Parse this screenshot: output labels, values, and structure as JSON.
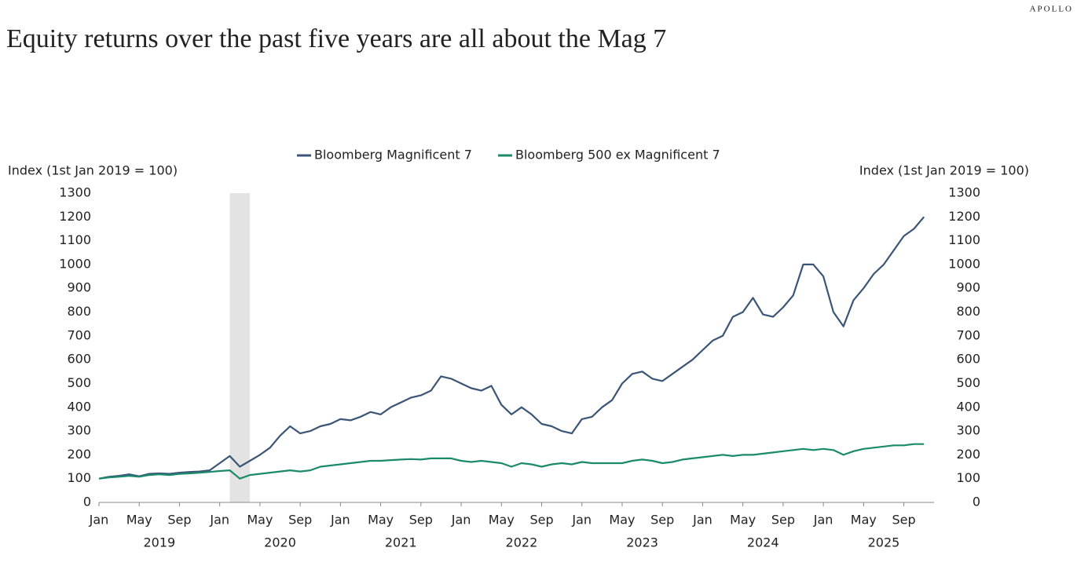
{
  "brand": "APOLLO",
  "chart_data": {
    "type": "line",
    "title": "Equity returns over the past five years are all about the Mag 7",
    "ylabel": "Index (1st Jan 2019 = 100)",
    "y2label": "Index (1st Jan 2019 = 100)",
    "x": [
      "2019-01",
      "2019-02",
      "2019-03",
      "2019-04",
      "2019-05",
      "2019-06",
      "2019-07",
      "2019-08",
      "2019-09",
      "2019-10",
      "2019-11",
      "2019-12",
      "2020-01",
      "2020-02",
      "2020-03",
      "2020-04",
      "2020-05",
      "2020-06",
      "2020-07",
      "2020-08",
      "2020-09",
      "2020-10",
      "2020-11",
      "2020-12",
      "2021-01",
      "2021-02",
      "2021-03",
      "2021-04",
      "2021-05",
      "2021-06",
      "2021-07",
      "2021-08",
      "2021-09",
      "2021-10",
      "2021-11",
      "2021-12",
      "2022-01",
      "2022-02",
      "2022-03",
      "2022-04",
      "2022-05",
      "2022-06",
      "2022-07",
      "2022-08",
      "2022-09",
      "2022-10",
      "2022-11",
      "2022-12",
      "2023-01",
      "2023-02",
      "2023-03",
      "2023-04",
      "2023-05",
      "2023-06",
      "2023-07",
      "2023-08",
      "2023-09",
      "2023-10",
      "2023-11",
      "2023-12",
      "2024-01",
      "2024-02",
      "2024-03",
      "2024-04",
      "2024-05",
      "2024-06",
      "2024-07",
      "2024-08",
      "2024-09",
      "2024-10",
      "2024-11",
      "2024-12",
      "2025-01",
      "2025-02",
      "2025-03",
      "2025-04",
      "2025-05",
      "2025-06",
      "2025-07",
      "2025-08",
      "2025-09",
      "2025-10",
      "2025-11"
    ],
    "series": [
      {
        "name": "Bloomberg Magnificent 7",
        "color": "#3b5577",
        "values": [
          100,
          108,
          112,
          118,
          110,
          120,
          122,
          120,
          125,
          128,
          130,
          135,
          165,
          195,
          150,
          175,
          200,
          230,
          280,
          320,
          290,
          300,
          320,
          330,
          350,
          345,
          360,
          380,
          370,
          400,
          420,
          440,
          450,
          470,
          530,
          520,
          500,
          480,
          470,
          490,
          410,
          370,
          400,
          370,
          330,
          320,
          300,
          290,
          350,
          360,
          400,
          430,
          500,
          540,
          550,
          520,
          510,
          540,
          570,
          600,
          640,
          680,
          700,
          780,
          800,
          860,
          790,
          780,
          820,
          870,
          1000,
          1000,
          950,
          800,
          740,
          850,
          900,
          960,
          1000,
          1060,
          1120,
          1150,
          1200
        ]
      },
      {
        "name": "Bloomberg 500 ex Magnificent 7",
        "color": "#1a8a6a",
        "values": [
          100,
          105,
          108,
          112,
          108,
          115,
          118,
          115,
          120,
          122,
          125,
          128,
          132,
          135,
          100,
          115,
          120,
          125,
          130,
          135,
          130,
          135,
          150,
          155,
          160,
          165,
          170,
          175,
          175,
          178,
          180,
          182,
          180,
          185,
          185,
          185,
          175,
          170,
          175,
          170,
          165,
          150,
          165,
          160,
          150,
          160,
          165,
          160,
          170,
          165,
          165,
          165,
          165,
          175,
          180,
          175,
          165,
          170,
          180,
          185,
          190,
          195,
          200,
          195,
          200,
          200,
          205,
          210,
          215,
          220,
          225,
          220,
          225,
          220,
          200,
          215,
          225,
          230,
          235,
          240,
          240,
          245,
          245
        ]
      }
    ],
    "shade": [
      "2020-02",
      "2020-04"
    ],
    "xlim": [
      "2019-01",
      "2025-12"
    ],
    "xticks": [
      {
        "value": "2019-01",
        "label": "Jan"
      },
      {
        "value": "2019-05",
        "label": "May"
      },
      {
        "value": "2019-09",
        "label": "Sep"
      },
      {
        "value": "2020-01",
        "label": "Jan"
      },
      {
        "value": "2020-05",
        "label": "May"
      },
      {
        "value": "2020-09",
        "label": "Sep"
      },
      {
        "value": "2021-01",
        "label": "Jan"
      },
      {
        "value": "2021-05",
        "label": "May"
      },
      {
        "value": "2021-09",
        "label": "Sep"
      },
      {
        "value": "2022-01",
        "label": "Jan"
      },
      {
        "value": "2022-05",
        "label": "May"
      },
      {
        "value": "2022-09",
        "label": "Sep"
      },
      {
        "value": "2023-01",
        "label": "Jan"
      },
      {
        "value": "2023-05",
        "label": "May"
      },
      {
        "value": "2023-09",
        "label": "Sep"
      },
      {
        "value": "2024-01",
        "label": "Jan"
      },
      {
        "value": "2024-05",
        "label": "May"
      },
      {
        "value": "2024-09",
        "label": "Sep"
      },
      {
        "value": "2025-01",
        "label": "Jan"
      },
      {
        "value": "2025-05",
        "label": "May"
      },
      {
        "value": "2025-09",
        "label": "Sep"
      }
    ],
    "years": [
      "2019",
      "2020",
      "2021",
      "2022",
      "2023",
      "2024",
      "2025"
    ],
    "ylim": [
      0,
      1300
    ],
    "yticks": [
      0,
      100,
      200,
      300,
      400,
      500,
      600,
      700,
      800,
      900,
      1000,
      1100,
      1200,
      1300
    ],
    "y2lim": [
      0,
      1300
    ],
    "y2ticks": [
      0,
      100,
      200,
      300,
      400,
      500,
      600,
      700,
      800,
      900,
      1000,
      1100,
      1200,
      1300
    ],
    "legend": "top"
  }
}
